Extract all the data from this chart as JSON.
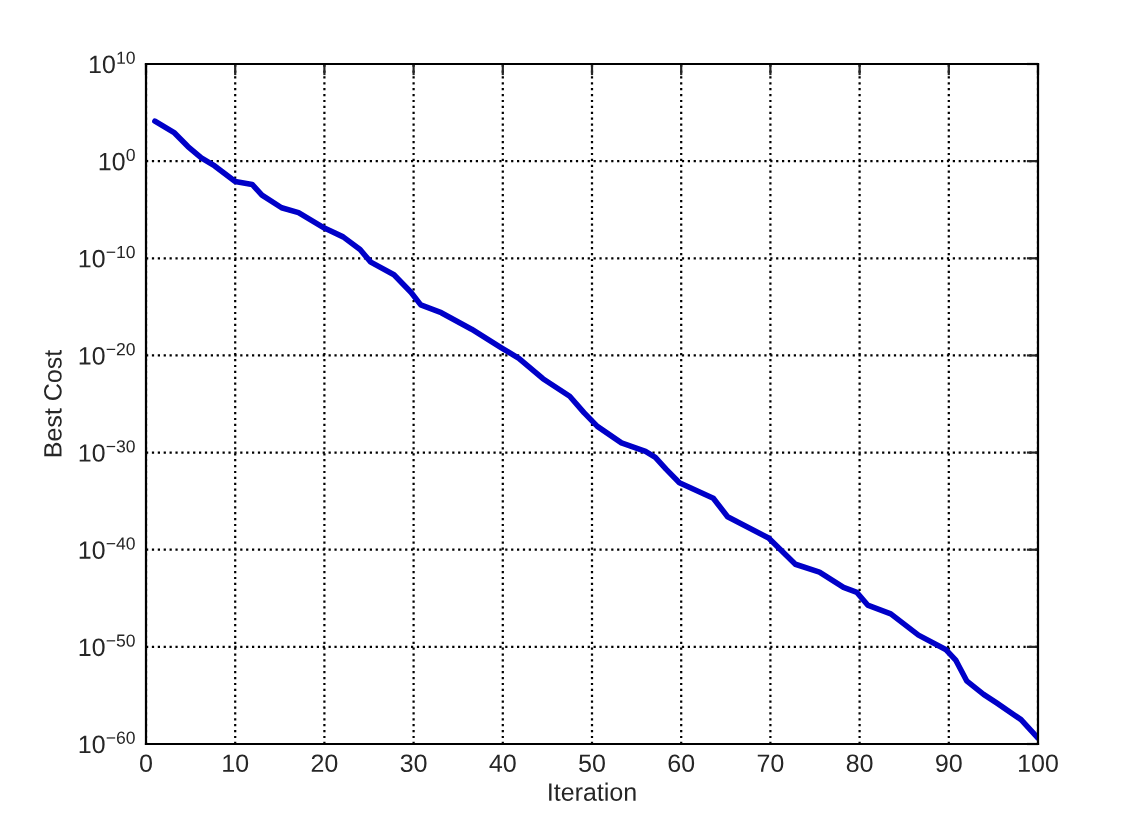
{
  "chart_data": {
    "type": "line",
    "xlabel": "Iteration",
    "ylabel": "Best Cost",
    "x": [
      1,
      3.2,
      4.7,
      6.2,
      7.7,
      10,
      11.9,
      13,
      15.2,
      17.1,
      20,
      22.1,
      24,
      25.2,
      27.8,
      29.7,
      30.8,
      33.1,
      36.5,
      39.8,
      41.8,
      44.5,
      47.5,
      49.1,
      50.6,
      53.3,
      56,
      57.1,
      58.3,
      59.8,
      63.6,
      65.2,
      69.8,
      72.8,
      75.5,
      78.2,
      79.7,
      80.9,
      83.5,
      86.6,
      89.7,
      90.8,
      92,
      93.9,
      95.4,
      98.1,
      100
    ],
    "series": [
      {
        "color": "#0000c8",
        "values": [
          13000.0,
          790.0,
          32.0,
          2.2,
          0.32,
          0.0079,
          0.004,
          0.00032,
          1.6e-05,
          5e-06,
          1.3e-07,
          1.6e-08,
          7.9e-10,
          4e-11,
          2e-12,
          3.2e-14,
          1.6e-15,
          2.5e-16,
          5e-18,
          6.3e-20,
          5e-21,
          4e-23,
          6.3e-25,
          1.3e-26,
          5e-28,
          1e-29,
          1.3e-30,
          3.2e-31,
          2e-32,
          7.9e-34,
          2e-35,
          2.5e-37,
          1.6e-39,
          3.2e-42,
          5e-43,
          1.3e-44,
          4e-45,
          2e-46,
          2.5e-47,
          1.6e-49,
          5e-51,
          4e-52,
          3.2e-54,
          1.3e-55,
          1.6e-56,
          3.2e-58,
          4e-60
        ]
      }
    ],
    "log": "y",
    "grid": true,
    "marker": "none",
    "line_style": "solid",
    "xlim": [
      0,
      100
    ],
    "xticks": [
      0,
      10,
      20,
      30,
      40,
      50,
      60,
      70,
      80,
      90,
      100
    ],
    "ylim": [
      1e-60,
      10000000000.0
    ],
    "yticks": [
      {
        "value": 1e-60,
        "label": "10$^{−60}$"
      },
      {
        "value": 1e-50,
        "label": "10$^{−50}$"
      },
      {
        "value": 1e-40,
        "label": "10$^{−40}$"
      },
      {
        "value": 1e-30,
        "label": "10$^{−30}$"
      },
      {
        "value": 1e-20,
        "label": "10$^{−20}$"
      },
      {
        "value": 1e-10,
        "label": "10$^{−10}$"
      },
      {
        "value": 1,
        "label": "10$^{0}$"
      },
      {
        "value": 10000000000.0,
        "label": "10$^{10}$"
      }
    ]
  }
}
